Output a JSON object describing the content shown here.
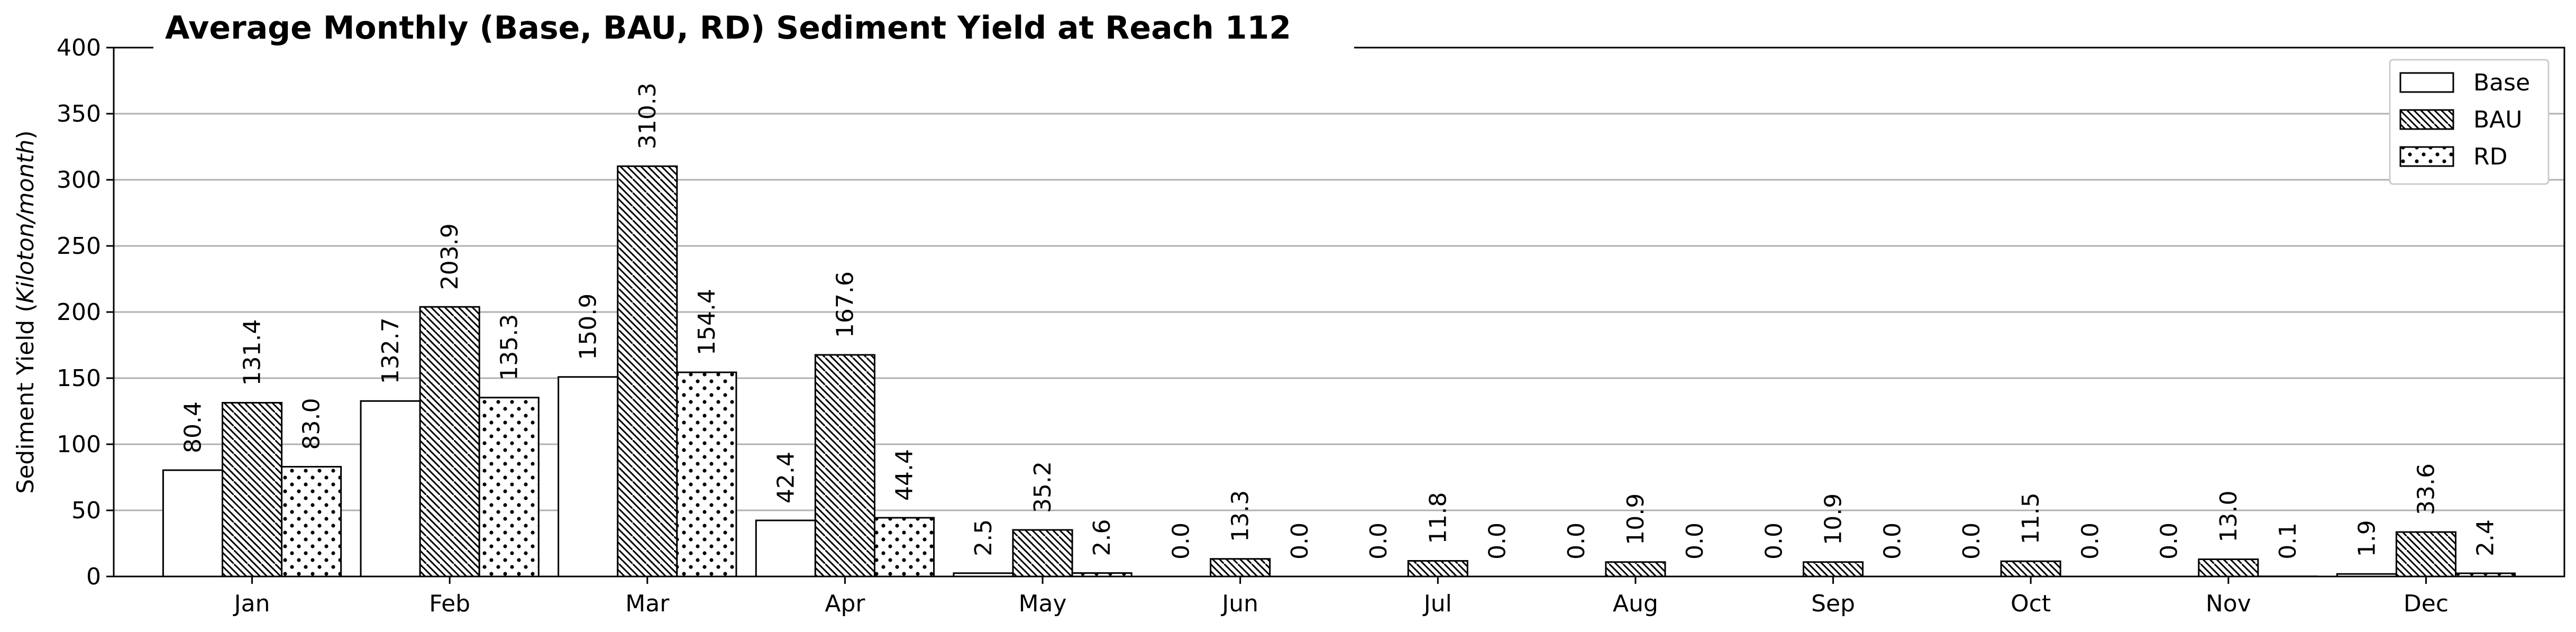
{
  "chart_data": {
    "type": "bar",
    "title": "Average Monthly (Base, BAU, RD) Sediment Yield at Reach 112",
    "ylabel_main": "Sediment Yield (",
    "ylabel_unit": "Kiloton/month",
    "ylabel_close": ")",
    "xlabel": "",
    "ylim": [
      0,
      400
    ],
    "yticks": [
      "0",
      "50",
      "100",
      "150",
      "200",
      "250",
      "300",
      "350",
      "400"
    ],
    "grid": "horizontal",
    "legend_position": "top-right",
    "categories": [
      "Jan",
      "Feb",
      "Mar",
      "Apr",
      "May",
      "Jun",
      "Jul",
      "Aug",
      "Sep",
      "Oct",
      "Nov",
      "Dec"
    ],
    "series": [
      {
        "name": "Base",
        "pattern": "solid",
        "values": [
          80.4,
          132.7,
          150.9,
          42.4,
          2.5,
          0.0,
          0.0,
          0.0,
          0.0,
          0.0,
          0.0,
          1.9
        ],
        "labels": [
          "80.4",
          "132.7",
          "150.9",
          "42.4",
          "2.5",
          "0.0",
          "0.0",
          "0.0",
          "0.0",
          "0.0",
          "0.0",
          "1.9"
        ]
      },
      {
        "name": "BAU",
        "pattern": "diagonal-hatch",
        "values": [
          131.4,
          203.9,
          310.3,
          167.6,
          35.2,
          13.3,
          11.8,
          10.9,
          10.9,
          11.5,
          13.0,
          33.6
        ],
        "labels": [
          "131.4",
          "203.9",
          "310.3",
          "167.6",
          "35.2",
          "13.3",
          "11.8",
          "10.9",
          "10.9",
          "11.5",
          "13.0",
          "33.6"
        ]
      },
      {
        "name": "RD",
        "pattern": "dots",
        "values": [
          83.0,
          135.3,
          154.4,
          44.4,
          2.6,
          0.0,
          0.0,
          0.0,
          0.0,
          0.0,
          0.1,
          2.4
        ],
        "labels": [
          "83.0",
          "135.3",
          "154.4",
          "44.4",
          "2.6",
          "0.0",
          "0.0",
          "0.0",
          "0.0",
          "0.0",
          "0.1",
          "2.4"
        ]
      }
    ],
    "colors": {
      "fill": "#ffffff",
      "edge": "#000000",
      "grid": "#b0b0b0"
    }
  }
}
